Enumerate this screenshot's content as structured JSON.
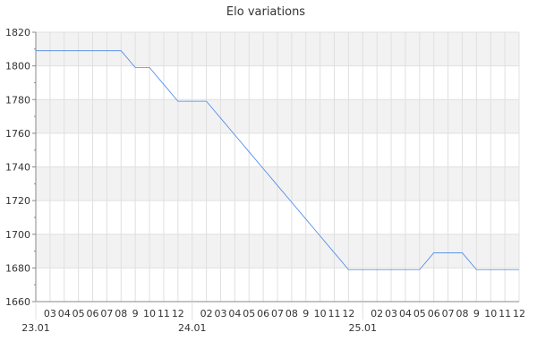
{
  "chart_data": {
    "type": "line",
    "title": "Elo variations",
    "xlabel": "",
    "ylabel": "",
    "ylim": [
      1660,
      1820
    ],
    "yticks": [
      1660,
      1680,
      1700,
      1720,
      1740,
      1760,
      1780,
      1800,
      1820
    ],
    "grid": true,
    "categories": [
      "23.01",
      "03",
      "04",
      "05",
      "06",
      "07",
      "08",
      "9",
      "10",
      "11",
      "12",
      "24.01",
      "02",
      "03",
      "04",
      "05",
      "06",
      "07",
      "08",
      "9",
      "10",
      "11",
      "12",
      "25.01",
      "02",
      "03",
      "04",
      "05",
      "06",
      "07",
      "08",
      "9",
      "10",
      "11",
      "12"
    ],
    "values": [
      1809,
      1809,
      1809,
      1809,
      1809,
      1809,
      1809,
      1799,
      1799,
      1789,
      1779,
      1779,
      1779,
      1769,
      1759,
      1749,
      1739,
      1729,
      1719,
      1709,
      1699,
      1689,
      1679,
      1679,
      1679,
      1679,
      1679,
      1679,
      1689,
      1689,
      1689,
      1679,
      1679,
      1679,
      1679
    ],
    "colors": {
      "line": "#4a86e8",
      "band": "#f2f2f2",
      "grid": "#e0e0e0",
      "axis": "#888888"
    }
  }
}
